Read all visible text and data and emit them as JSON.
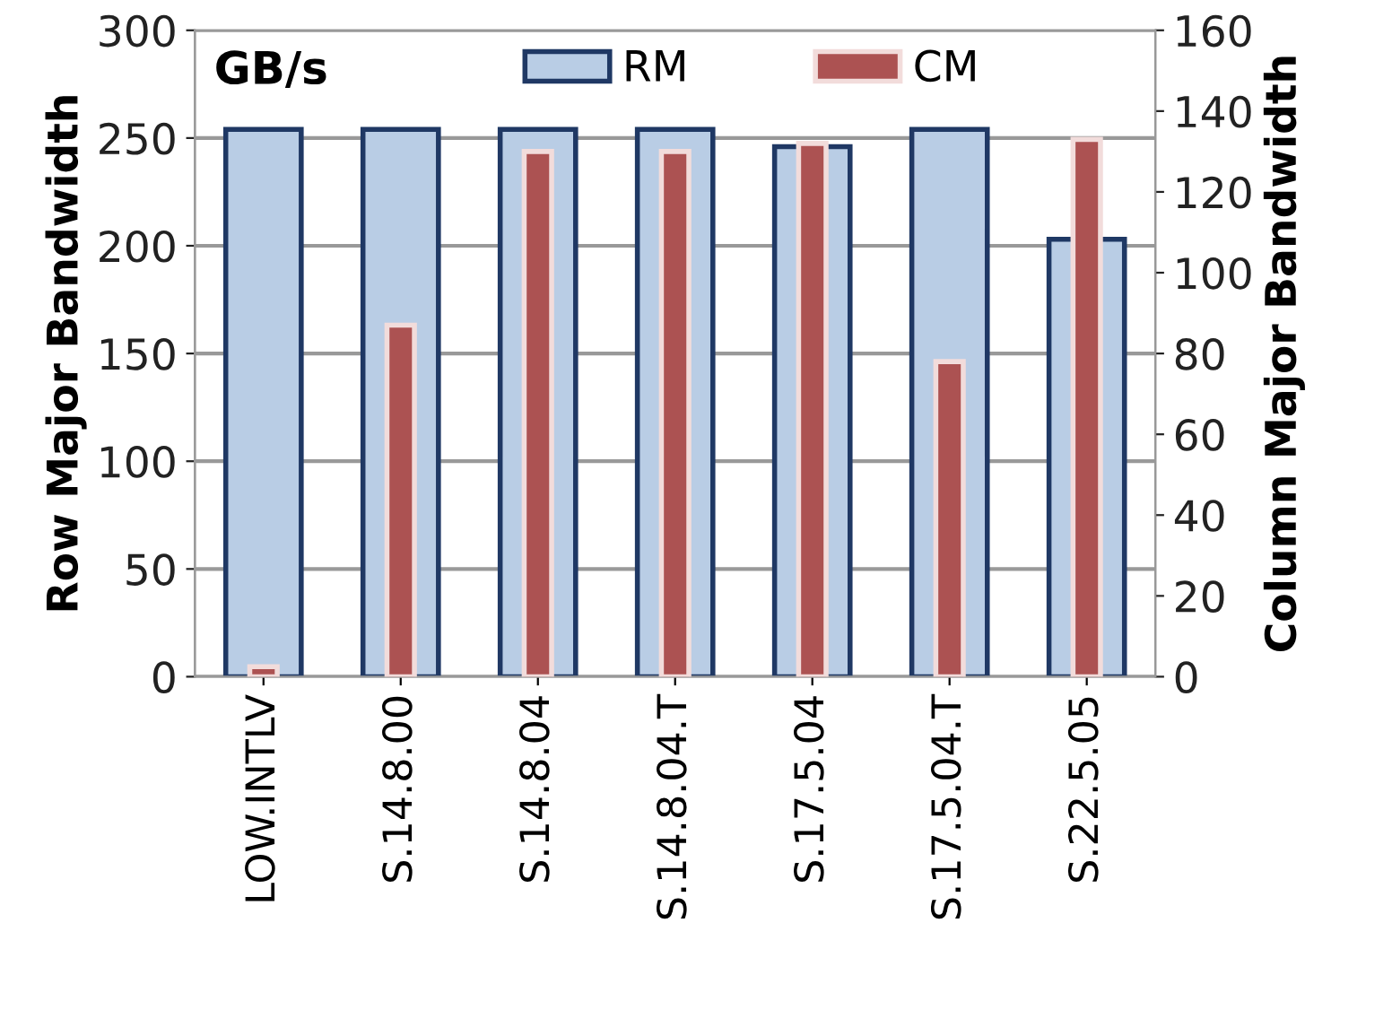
{
  "chart_data": {
    "type": "bar",
    "categories": [
      "LOW.INTLV",
      "S.14.8.00",
      "S.14.8.04",
      "S.14.8.04.T",
      "S.17.5.04",
      "S.17.5.04.T",
      "S.22.5.05"
    ],
    "series": [
      {
        "name": "RM",
        "color": "#b9cde5",
        "values": [
          254,
          254,
          254,
          254,
          246,
          254,
          203
        ]
      },
      {
        "name": "CM",
        "color": "#ac5252",
        "axis": "y2",
        "values": [
          2.5,
          87,
          130,
          130,
          132,
          78,
          133
        ]
      }
    ],
    "ylabel": "Row Major Bandwidth",
    "y2label": "Column Major Bandwidth",
    "annotations": [
      "GB/s"
    ],
    "ylim": [
      0,
      300
    ],
    "yticks": [
      0,
      50,
      100,
      150,
      200,
      250,
      300
    ],
    "y2lim": [
      0,
      160
    ],
    "y2ticks": [
      0,
      20,
      40,
      60,
      80,
      100,
      120,
      140,
      160
    ],
    "grid": "y",
    "legend": "top"
  }
}
